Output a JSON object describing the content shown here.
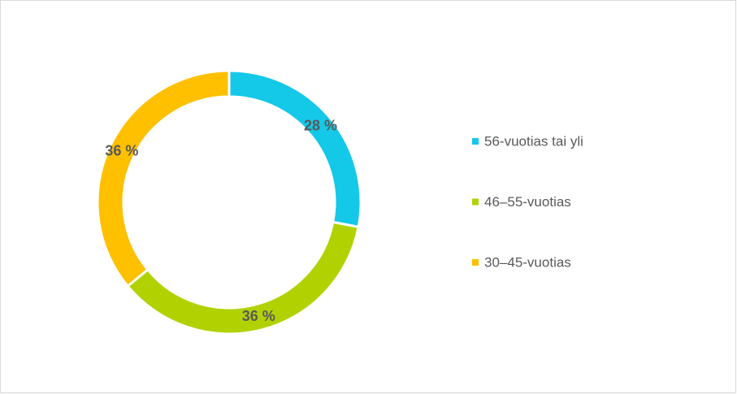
{
  "chart_data": {
    "type": "donut",
    "categories": [
      "56-vuotias tai yli",
      "46–55-vuotias",
      "30–45-vuotias"
    ],
    "values": [
      28,
      36,
      36
    ],
    "value_labels": [
      "28 %",
      "36 %",
      "36 %"
    ],
    "colors": [
      "#14c8e8",
      "#b2d200",
      "#ffc000"
    ],
    "legend": "right"
  }
}
